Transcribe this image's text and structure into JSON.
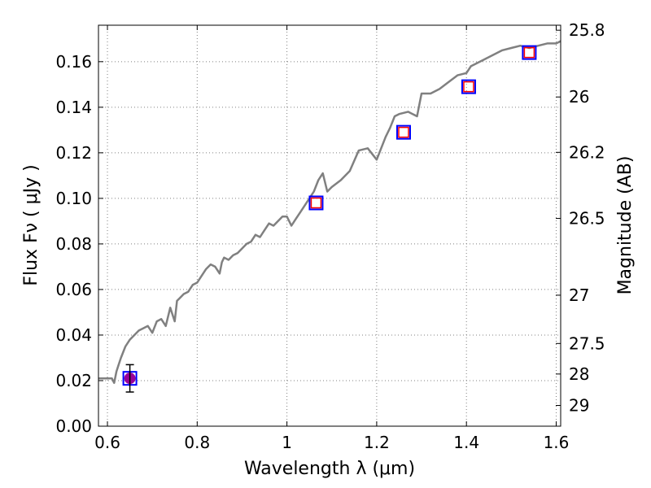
{
  "chart_data": {
    "type": "line",
    "xlabel": "Wavelength  λ (μm)",
    "ylabel": "Flux  Fν  ( μJy )",
    "y2label": "Magnitude (AB)",
    "xlim": [
      0.58,
      1.61
    ],
    "ylim": [
      0.0,
      0.176
    ],
    "grid": true,
    "x_ticks": [
      0.6,
      0.8,
      1.0,
      1.2,
      1.4,
      1.6
    ],
    "x_tick_labels": [
      "0.6",
      "0.8",
      "1",
      "1.2",
      "1.4",
      "1.6"
    ],
    "y_ticks": [
      0.0,
      0.02,
      0.04,
      0.06,
      0.08,
      0.1,
      0.12,
      0.14,
      0.16
    ],
    "y_tick_labels": [
      "0.00",
      "0.02",
      "0.04",
      "0.06",
      "0.08",
      "0.10",
      "0.12",
      "0.14",
      "0.16"
    ],
    "magnitude_ticks": [
      {
        "label": "25.8",
        "flux": 0.1738
      },
      {
        "label": "26",
        "flux": 0.1445
      },
      {
        "label": "26.2",
        "flux": 0.1202
      },
      {
        "label": "26.5",
        "flux": 0.0912
      },
      {
        "label": "27",
        "flux": 0.0575
      },
      {
        "label": "27.5",
        "flux": 0.0363
      },
      {
        "label": "28",
        "flux": 0.0229
      },
      {
        "label": "29",
        "flux": 0.0091
      }
    ],
    "colors": {
      "model": "#808080",
      "model_box": "#0000ff",
      "observed_box": "#ff0000",
      "observed_point": "#990099",
      "errorbar": "#000000",
      "grid": "#808080"
    },
    "series": [
      {
        "style": "line",
        "x": [
          0.58,
          0.59,
          0.6,
          0.61,
          0.615,
          0.62,
          0.625,
          0.63,
          0.64,
          0.65,
          0.655,
          0.66,
          0.67,
          0.68,
          0.69,
          0.7,
          0.71,
          0.72,
          0.73,
          0.74,
          0.75,
          0.755,
          0.76,
          0.77,
          0.78,
          0.79,
          0.8,
          0.81,
          0.82,
          0.83,
          0.84,
          0.85,
          0.855,
          0.86,
          0.87,
          0.88,
          0.89,
          0.9,
          0.91,
          0.92,
          0.93,
          0.94,
          0.95,
          0.96,
          0.97,
          0.98,
          0.99,
          1.0,
          1.01,
          1.02,
          1.03,
          1.04,
          1.05,
          1.06,
          1.07,
          1.08,
          1.09,
          1.1,
          1.12,
          1.14,
          1.16,
          1.18,
          1.2,
          1.22,
          1.23,
          1.24,
          1.25,
          1.27,
          1.29,
          1.3,
          1.32,
          1.34,
          1.36,
          1.38,
          1.4,
          1.41,
          1.42,
          1.44,
          1.46,
          1.48,
          1.5,
          1.52,
          1.54,
          1.56,
          1.58,
          1.6,
          1.61
        ],
        "y": [
          0.021,
          0.021,
          0.021,
          0.021,
          0.019,
          0.024,
          0.027,
          0.03,
          0.035,
          0.038,
          0.039,
          0.04,
          0.042,
          0.043,
          0.044,
          0.041,
          0.046,
          0.047,
          0.044,
          0.052,
          0.046,
          0.055,
          0.056,
          0.058,
          0.059,
          0.062,
          0.063,
          0.066,
          0.069,
          0.071,
          0.07,
          0.067,
          0.072,
          0.074,
          0.073,
          0.075,
          0.076,
          0.078,
          0.08,
          0.081,
          0.084,
          0.083,
          0.086,
          0.089,
          0.088,
          0.09,
          0.092,
          0.092,
          0.088,
          0.091,
          0.094,
          0.097,
          0.1,
          0.103,
          0.108,
          0.111,
          0.103,
          0.105,
          0.108,
          0.112,
          0.121,
          0.122,
          0.117,
          0.127,
          0.131,
          0.136,
          0.137,
          0.138,
          0.136,
          0.146,
          0.146,
          0.148,
          0.151,
          0.154,
          0.155,
          0.158,
          0.159,
          0.161,
          0.163,
          0.165,
          0.166,
          0.167,
          0.166,
          0.167,
          0.168,
          0.168,
          0.169
        ]
      },
      {
        "style": "model_points",
        "x": [
          0.65,
          1.065,
          1.26,
          1.405,
          1.54
        ],
        "y": [
          0.021,
          0.098,
          0.129,
          0.149,
          0.164
        ]
      },
      {
        "style": "observed_points",
        "x": [
          1.065,
          1.26,
          1.405,
          1.54
        ],
        "y": [
          0.098,
          0.129,
          0.149,
          0.164
        ]
      },
      {
        "style": "detection",
        "x": [
          0.65
        ],
        "y": [
          0.021
        ],
        "err": [
          0.006
        ]
      }
    ]
  }
}
